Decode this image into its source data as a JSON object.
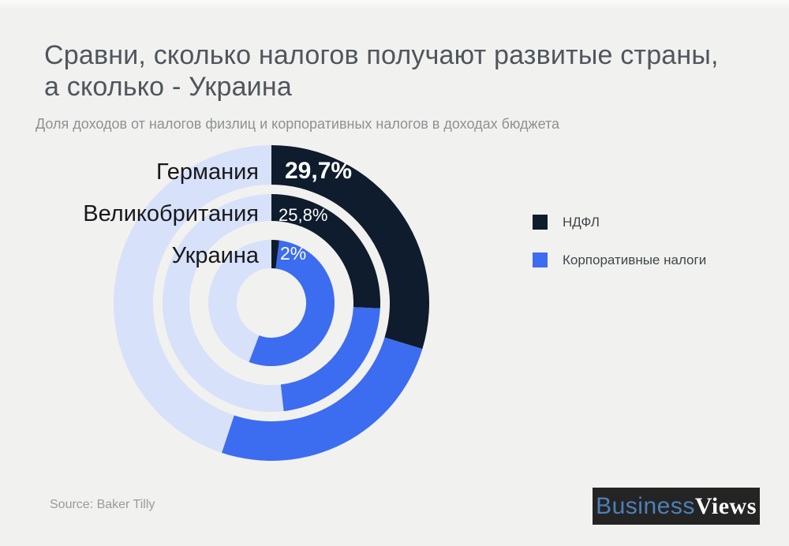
{
  "header": {
    "title_line1": "Сравни, сколько налогов получают развитые страны,",
    "title_line2": "а сколько - Украина",
    "subtitle": "Доля доходов от налогов физлиц и корпоративных налогов в доходах бюджета"
  },
  "chart_data": {
    "type": "pie",
    "variant": "concentric-donut",
    "title": "Сравни, сколько налогов получают развитые страны, а сколько - Украина",
    "subtitle": "Доля доходов от налогов физлиц и корпоративных налогов в доходах бюджета",
    "unit": "percent of budget revenues",
    "start_angle_deg": 0,
    "direction": "clockwise",
    "legend_position": "right",
    "legend": [
      {
        "label": "НДФЛ",
        "color": "#0e1c2d"
      },
      {
        "label": "Корпоративные налоги",
        "color": "#3c6cf0"
      }
    ],
    "rings": [
      {
        "country": "Германия",
        "key": "germany",
        "pit_pct": 29.7,
        "pit_label": "29,7%",
        "corporate_pct": 25.4,
        "rest_pct": 44.9
      },
      {
        "country": "Великобритания",
        "key": "uk",
        "pit_pct": 25.8,
        "pit_label": "25,8%",
        "corporate_pct": 22.4,
        "rest_pct": 51.8
      },
      {
        "country": "Украина",
        "key": "ukraine",
        "pit_pct": 2.0,
        "pit_label": "2%",
        "corporate_pct": 53.8,
        "rest_pct": 44.2
      }
    ]
  },
  "colors": {
    "background": "#f1f1ef",
    "pit": "#0e1c2d",
    "corporate": "#3c6cf0",
    "rest": "#d8e1fa",
    "title_text": "#4f565d",
    "subtitle_text": "#8e9194",
    "country_text": "#17191c",
    "pct_text": "#ffffff",
    "legend_text": "#41464b",
    "source_text": "#9a9a9a",
    "logo_bg": "#242424",
    "logo_business_text": "#4d80b8",
    "logo_views_text": "#ffffff"
  },
  "footer": {
    "source": "Source: Baker Tilly",
    "logo_business": "Business",
    "logo_views": "Views"
  }
}
